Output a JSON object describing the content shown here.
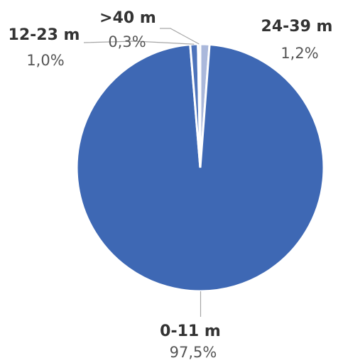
{
  "chart_data": {
    "type": "pie",
    "title": "",
    "start_angle_deg": 0,
    "direction": "clockwise",
    "slices": [
      {
        "label": "24-39 m",
        "value": 1.2,
        "value_label": "1,2%",
        "color": "#aab8db"
      },
      {
        "label": "0-11 m",
        "value": 97.5,
        "value_label": "97,5%",
        "color": "#3e68b4"
      },
      {
        "label": "12-23 m",
        "value": 1.0,
        "value_label": "1,0%",
        "color": "#4e74bb"
      },
      {
        "label": ">40 m",
        "value": 0.3,
        "value_label": "0,3%",
        "color": "#b8c4e2"
      }
    ]
  }
}
